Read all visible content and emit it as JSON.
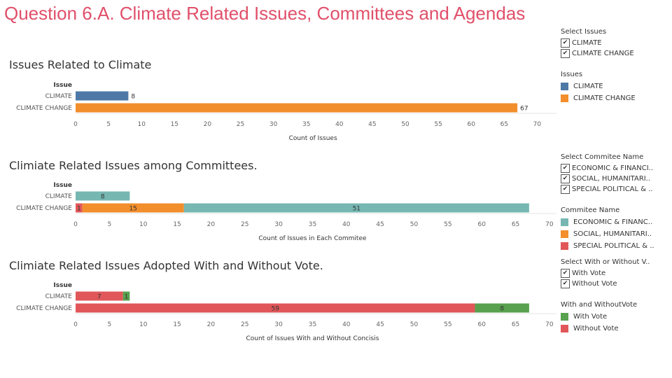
{
  "page_title": "Question 6.A. Climate Related Issues, Committees and Agendas",
  "colors": {
    "climate": "#4e79a7",
    "climate_change": "#f28e2b",
    "economic": "#76b7b2",
    "social": "#f28e2b",
    "special_political": "#e15759",
    "with_vote": "#59a14f",
    "without_vote": "#e15759"
  },
  "filters": {
    "issues": {
      "title": "Select Issues",
      "items": [
        "CLIMATE",
        "CLIMATE CHANGE"
      ]
    },
    "committees": {
      "title": "Select Commitee Name",
      "items": [
        "ECONOMIC & FINANCI..",
        "SOCIAL, HUMANITARI..",
        "SPECIAL POLITICAL & .."
      ]
    },
    "vote": {
      "title": "Select With or Without V..",
      "items": [
        "With Vote",
        "Without Vote"
      ]
    }
  },
  "legends": {
    "issues": {
      "title": "Issues",
      "items": [
        {
          "label": "CLIMATE",
          "color": "#4e79a7"
        },
        {
          "label": "CLIMATE CHANGE",
          "color": "#f28e2b"
        }
      ]
    },
    "committees": {
      "title": "Commitee Name",
      "items": [
        {
          "label": "ECONOMIC & FINANC..",
          "color": "#76b7b2"
        },
        {
          "label": "SOCIAL, HUMANITARI..",
          "color": "#f28e2b"
        },
        {
          "label": "SPECIAL POLITICAL & ..",
          "color": "#e15759"
        }
      ]
    },
    "vote": {
      "title": "With and WithoutVote",
      "items": [
        {
          "label": "With Vote",
          "color": "#59a14f"
        },
        {
          "label": "Without Vote",
          "color": "#e15759"
        }
      ]
    }
  },
  "chart_data": [
    {
      "type": "bar",
      "orientation": "horizontal",
      "title": "Issues Related to Climate",
      "ylabel": "Issue",
      "xlabel": "Count of Issues",
      "categories": [
        "CLIMATE",
        "CLIMATE CHANGE"
      ],
      "xticks": [
        0,
        5,
        10,
        15,
        20,
        25,
        30,
        35,
        40,
        45,
        50,
        55,
        60,
        65,
        70
      ],
      "xlim": [
        0,
        72
      ],
      "series": [
        {
          "name": "CLIMATE",
          "color": "#4e79a7",
          "values": [
            8,
            0
          ]
        },
        {
          "name": "CLIMATE CHANGE",
          "color": "#f28e2b",
          "values": [
            0,
            67
          ]
        }
      ],
      "data_labels": [
        "8",
        "67"
      ],
      "label_position": "outside",
      "grid": false,
      "legend": "right"
    },
    {
      "type": "bar",
      "orientation": "horizontal",
      "stacked": true,
      "title": "Climiate Related Issues among Committees.",
      "ylabel": "Issue",
      "xlabel": "Count of Issues in Each Commitee",
      "categories": [
        "CLIMATE",
        "CLIMATE CHANGE"
      ],
      "xticks": [
        0,
        5,
        10,
        15,
        20,
        25,
        30,
        35,
        40,
        45,
        50,
        55,
        60,
        65,
        70
      ],
      "xlim": [
        0,
        71
      ],
      "series": [
        {
          "name": "SPECIAL POLITICAL & ..",
          "color": "#e15759",
          "values": [
            0,
            1
          ]
        },
        {
          "name": "SOCIAL, HUMANITARI..",
          "color": "#f28e2b",
          "values": [
            0,
            15
          ]
        },
        {
          "name": "ECONOMIC & FINANC..",
          "color": "#76b7b2",
          "values": [
            8,
            51
          ]
        }
      ],
      "data_labels": [
        [
          "",
          "1"
        ],
        [
          "",
          "15"
        ],
        [
          "8",
          "51"
        ]
      ],
      "label_position": "inside",
      "grid": false,
      "legend": "right"
    },
    {
      "type": "bar",
      "orientation": "horizontal",
      "stacked": true,
      "title": "Climiate Related Issues Adopted With and Without Vote.",
      "ylabel": "Issue",
      "xlabel": "Count of Issues With and Without Concisis",
      "categories": [
        "CLIMATE",
        "CLIMATE CHANGE"
      ],
      "xticks": [
        0,
        5,
        10,
        15,
        20,
        25,
        30,
        35,
        40,
        45,
        50,
        55,
        60,
        65,
        70
      ],
      "xlim": [
        0,
        71
      ],
      "series": [
        {
          "name": "Without Vote",
          "color": "#e15759",
          "values": [
            7,
            59
          ]
        },
        {
          "name": "With Vote",
          "color": "#59a14f",
          "values": [
            1,
            8
          ]
        }
      ],
      "data_labels": [
        [
          "7",
          "59"
        ],
        [
          "1",
          "8"
        ]
      ],
      "label_position": "inside",
      "grid": false,
      "legend": "right"
    }
  ]
}
